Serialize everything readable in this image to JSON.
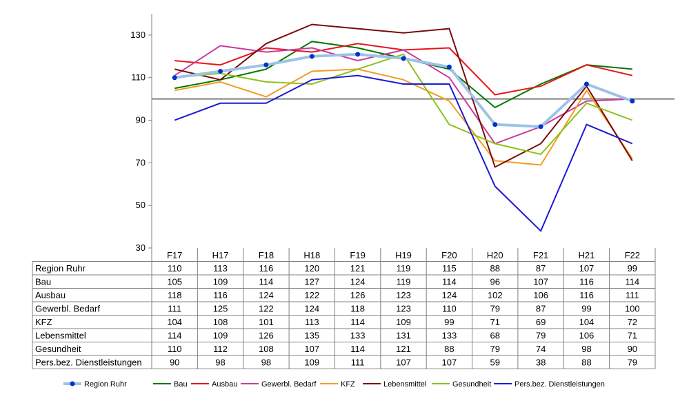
{
  "chart_data": {
    "type": "line",
    "categories": [
      "F17",
      "H17",
      "F18",
      "H18",
      "F19",
      "H19",
      "F20",
      "H20",
      "F21",
      "H21",
      "F22"
    ],
    "ylim": [
      30,
      140
    ],
    "yticks": [
      30,
      50,
      70,
      90,
      110,
      130
    ],
    "reference_line": 100,
    "grid": false,
    "legend_position": "bottom",
    "series": [
      {
        "name": "Region Ruhr",
        "color": "#9DC3E6",
        "marker_color": "#0033CC",
        "values": [
          110,
          113,
          116,
          120,
          121,
          119,
          115,
          88,
          87,
          107,
          99
        ]
      },
      {
        "name": "Bau",
        "color": "#007A00",
        "values": [
          105,
          109,
          114,
          127,
          124,
          119,
          114,
          96,
          107,
          116,
          114
        ]
      },
      {
        "name": "Ausbau",
        "color": "#E8141B",
        "values": [
          118,
          116,
          124,
          122,
          126,
          123,
          124,
          102,
          106,
          116,
          111
        ]
      },
      {
        "name": "Gewerbl. Bedarf",
        "color": "#C83CA0",
        "values": [
          111,
          125,
          122,
          124,
          118,
          123,
          110,
          79,
          87,
          99,
          100
        ]
      },
      {
        "name": "KFZ",
        "color": "#F39C1F",
        "values": [
          104,
          108,
          101,
          113,
          114,
          109,
          99,
          71,
          69,
          104,
          72
        ]
      },
      {
        "name": "Lebensmittel",
        "color": "#7A0A0A",
        "values": [
          114,
          109,
          126,
          135,
          133,
          131,
          133,
          68,
          79,
          106,
          71
        ]
      },
      {
        "name": "Gesundheit",
        "color": "#8CC21B",
        "values": [
          110,
          112,
          108,
          107,
          114,
          121,
          88,
          79,
          74,
          98,
          90
        ]
      },
      {
        "name": "Pers.bez. Dienstleistungen",
        "table_label": "Pers.bez. Dienstleistungen",
        "color": "#1A1AD6",
        "values": [
          90,
          98,
          98,
          109,
          111,
          107,
          107,
          59,
          38,
          88,
          79
        ]
      }
    ],
    "table_row_labels": [
      "Region Ruhr",
      "Bau",
      "Ausbau",
      "Gewerbl. Bedarf",
      "KFZ",
      "Lebensmittel",
      "Gesundheit",
      "Pers.bez. Dienstleistungen"
    ]
  }
}
